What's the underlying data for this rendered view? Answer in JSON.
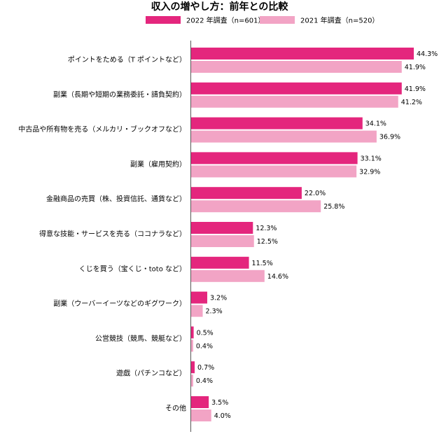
{
  "chart_data": {
    "type": "bar",
    "orientation": "horizontal",
    "title": "収入の増やし方：前年との比較",
    "legend_position": "top",
    "grid": false,
    "xlim": [
      0,
      48
    ],
    "categories": [
      "ポイントをためる（T ポイントなど）",
      "副業（長期や短期の業務委託・請負契約）",
      "中古品や所有物を売る（メルカリ・ブックオフなど）",
      "副業（雇用契約）",
      "金融商品の売買（株、投資信託、通貨など）",
      "得意な技能・サービスを売る（ココナラなど）",
      "くじを買う（宝くじ・toto など）",
      "副業（ウーバーイーツなどのギグワーク）",
      "公営競技（競馬、競艇など）",
      "遊戯（パチンコなど）",
      "その他"
    ],
    "series": [
      {
        "name": "2022 年調査（n=601）",
        "color": "#e4267d",
        "values": [
          44.3,
          41.9,
          34.1,
          33.1,
          22.0,
          12.3,
          11.5,
          3.2,
          0.5,
          0.7,
          3.5
        ],
        "labels": [
          "44.3%",
          "41.9%",
          "34.1%",
          "33.1%",
          "22.0%",
          "12.3%",
          "11.5%",
          "3.2%",
          "0.5%",
          "0.7%",
          "3.5%"
        ]
      },
      {
        "name": "2021 年調査（n=520）",
        "color": "#f2a4c5",
        "values": [
          41.9,
          41.2,
          36.9,
          32.9,
          25.8,
          12.5,
          14.6,
          2.3,
          0.4,
          0.4,
          4.0
        ],
        "labels": [
          "41.9%",
          "41.2%",
          "36.9%",
          "32.9%",
          "25.8%",
          "12.5%",
          "14.6%",
          "2.3%",
          "0.4%",
          "0.4%",
          "4.0%"
        ]
      }
    ]
  }
}
